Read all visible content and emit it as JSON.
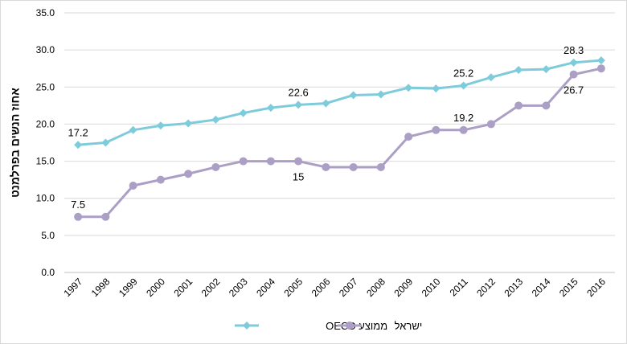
{
  "chart_data": {
    "type": "line",
    "title": "",
    "xlabel": "",
    "ylabel": "אחוז הנשים בפרלמנט",
    "ylim": [
      0,
      35
    ],
    "yticks": [
      "0.0",
      "5.0",
      "10.0",
      "15.0",
      "20.0",
      "25.0",
      "30.0",
      "35.0"
    ],
    "grid": true,
    "legend_position": "bottom",
    "categories": [
      "1997",
      "1998",
      "1999",
      "2000",
      "2001",
      "2002",
      "2003",
      "2004",
      "2005",
      "2006",
      "2007",
      "2008",
      "2009",
      "2010",
      "2011",
      "2012",
      "2013",
      "2014",
      "2015",
      "2016"
    ],
    "series": [
      {
        "name": "ממוצע OECD",
        "color": "#7ecbdb",
        "marker": "diamond",
        "values": [
          17.2,
          17.5,
          19.2,
          19.8,
          20.1,
          20.6,
          21.5,
          22.2,
          22.6,
          22.8,
          23.9,
          24.0,
          24.9,
          24.8,
          25.2,
          26.3,
          27.3,
          27.4,
          28.3,
          28.6
        ]
      },
      {
        "name": "ישראל",
        "color": "#ac9fc6",
        "marker": "circle",
        "values": [
          7.5,
          7.5,
          11.7,
          12.5,
          13.3,
          14.2,
          15.0,
          15.0,
          15.0,
          14.2,
          14.2,
          14.2,
          18.3,
          19.2,
          19.2,
          20.0,
          22.5,
          22.5,
          26.7,
          27.5
        ]
      }
    ],
    "annotations": [
      {
        "text": "17.2",
        "series": 0,
        "index": 0,
        "pos": "above"
      },
      {
        "text": "22.6",
        "series": 0,
        "index": 8,
        "pos": "above"
      },
      {
        "text": "25.2",
        "series": 0,
        "index": 14,
        "pos": "above"
      },
      {
        "text": "28.3",
        "series": 0,
        "index": 18,
        "pos": "above"
      },
      {
        "text": "7.5",
        "series": 1,
        "index": 0,
        "pos": "above"
      },
      {
        "text": "15",
        "series": 1,
        "index": 8,
        "pos": "below"
      },
      {
        "text": "19.2",
        "series": 1,
        "index": 14,
        "pos": "above"
      },
      {
        "text": "26.7",
        "series": 1,
        "index": 18,
        "pos": "below"
      }
    ]
  }
}
